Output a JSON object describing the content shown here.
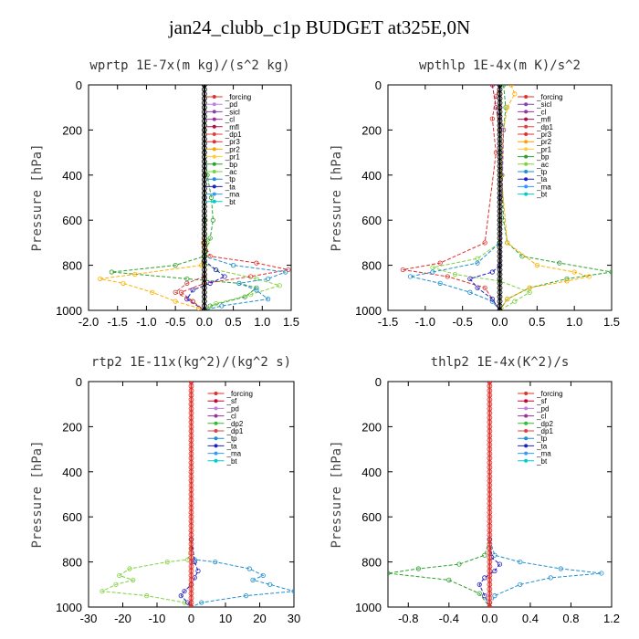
{
  "figure": {
    "title": "jan24_clubb_c1p  BUDGET at325E,0N"
  },
  "chart_data": [
    {
      "type": "line",
      "id": "wprtp",
      "title": "wprtp  1E-7x(m kg)/(s^2 kg)",
      "xlabel": "",
      "ylabel": "Pressure [hPa]",
      "xlim": [
        -2.0,
        1.5
      ],
      "xticks": [
        -2.0,
        -1.5,
        -1.0,
        -0.5,
        0.0,
        0.5,
        1.0,
        1.5
      ],
      "xtick_labels": [
        "-2.0",
        "-1.5",
        "-1.0",
        "-0.5",
        "0.0",
        "0.5",
        "1.0",
        "1.5"
      ],
      "ylim": [
        1000,
        0
      ],
      "yticks": [
        0,
        200,
        400,
        600,
        800,
        1000
      ],
      "ytick_labels": [
        "0",
        "200",
        "400",
        "600",
        "800",
        "1000"
      ],
      "legend": [
        "_forcing",
        "_pd",
        "_sicl",
        "_cl",
        "_mfl",
        "_dp1",
        "_pr3",
        "_pr2",
        "_pr1",
        "_bp",
        "_ac",
        "_tp",
        "_ta",
        "_ma",
        "_bt"
      ],
      "series": [
        {
          "name": "_bp",
          "color": "#2ca02c",
          "x": [
            0,
            0,
            0,
            0.05,
            0.12,
            0.15,
            0.1,
            0.02,
            0,
            -0.5,
            -1.6,
            -0.3,
            0.6,
            0.9,
            0.7,
            0.1,
            0
          ],
          "y": [
            0,
            200,
            300,
            400,
            500,
            600,
            680,
            740,
            760,
            800,
            830,
            860,
            880,
            900,
            940,
            980,
            1000
          ]
        },
        {
          "name": "_ac",
          "color": "#7fd23f",
          "x": [
            0,
            0,
            0,
            0.02,
            0.05,
            0.02,
            0,
            0.2,
            0.9,
            1.3,
            0.8,
            0.2,
            0
          ],
          "y": [
            0,
            300,
            500,
            600,
            700,
            760,
            790,
            820,
            860,
            890,
            930,
            970,
            1000
          ]
        },
        {
          "name": "_pr1",
          "color": "#ffb000",
          "x": [
            0,
            0,
            0,
            -0.02,
            -0.05,
            -1.2,
            -1.8,
            -1.4,
            -0.9,
            -0.5,
            -0.1,
            0
          ],
          "y": [
            0,
            400,
            600,
            700,
            800,
            840,
            860,
            880,
            920,
            960,
            990,
            1000
          ]
        },
        {
          "name": "_pr3",
          "color": "#e0302a",
          "x": [
            0,
            0,
            0,
            0.1,
            0.9,
            1.45,
            0.8,
            0,
            -0.4,
            -0.2,
            0
          ],
          "y": [
            0,
            400,
            700,
            760,
            790,
            820,
            850,
            880,
            920,
            960,
            1000
          ]
        },
        {
          "name": "_tp",
          "color": "#1f8fd0",
          "x": [
            0,
            0,
            0,
            0.5,
            1.4,
            1.1,
            0.6,
            0.9,
            1.1,
            0.3,
            0
          ],
          "y": [
            0,
            500,
            760,
            800,
            830,
            860,
            880,
            910,
            950,
            980,
            1000
          ]
        },
        {
          "name": "_ta",
          "color": "#2020c0",
          "x": [
            0,
            0,
            0,
            0.2,
            0.35,
            0.1,
            -0.2,
            -0.3,
            0
          ],
          "y": [
            0,
            600,
            780,
            820,
            850,
            880,
            910,
            950,
            1000
          ]
        },
        {
          "name": "_dp1",
          "color": "#cc4444",
          "x": [
            0,
            0,
            0,
            -0.3,
            -0.5,
            -0.2,
            0
          ],
          "y": [
            0,
            700,
            850,
            880,
            920,
            960,
            1000
          ]
        },
        {
          "name": "_forcing",
          "color": "#000000",
          "x": [
            0,
            0
          ],
          "y": [
            0,
            1000
          ]
        }
      ]
    },
    {
      "type": "line",
      "id": "wpthlp",
      "title": "wpthlp  1E-4x(m K)/s^2",
      "xlabel": "",
      "ylabel": "Pressure [hPa]",
      "xlim": [
        -1.5,
        1.5
      ],
      "xticks": [
        -1.5,
        -1.0,
        -0.5,
        0.0,
        0.5,
        1.0,
        1.5
      ],
      "xtick_labels": [
        "-1.5",
        "-1.0",
        "-0.5",
        "0.0",
        "0.5",
        "1.0",
        "1.5"
      ],
      "ylim": [
        1000,
        0
      ],
      "yticks": [
        0,
        200,
        400,
        600,
        800,
        1000
      ],
      "ytick_labels": [
        "0",
        "200",
        "400",
        "600",
        "800",
        "1000"
      ],
      "legend": [
        "_forcing",
        "_sicl",
        "_cl",
        "_mfl",
        "_dp1",
        "_pr3",
        "_pr2",
        "_pr1",
        "_bp",
        "_ac",
        "_tp",
        "_ta",
        "_ma",
        "_bt"
      ],
      "series": [
        {
          "name": "_ac",
          "color": "#2ca02c",
          "x": [
            0.05,
            0.08,
            0.05,
            0.03,
            0.05,
            0.1,
            0.3,
            0.8,
            1.5,
            0.9,
            0.4,
            0.1,
            0
          ],
          "y": [
            0,
            100,
            200,
            400,
            600,
            700,
            760,
            790,
            830,
            860,
            900,
            950,
            1000
          ]
        },
        {
          "name": "_pr1",
          "color": "#ffb000",
          "x": [
            0.15,
            0.2,
            0.1,
            0.05,
            0.02,
            0.1,
            0.5,
            1.0,
            1.2,
            0.9,
            0.4,
            0.1,
            0
          ],
          "y": [
            0,
            40,
            100,
            200,
            400,
            700,
            800,
            830,
            850,
            870,
            900,
            950,
            1000
          ]
        },
        {
          "name": "_bp",
          "color": "#7fd23f",
          "x": [
            0,
            0,
            0,
            0,
            -0.3,
            -0.9,
            -0.6,
            0,
            0.4,
            0.2,
            0
          ],
          "y": [
            0,
            200,
            600,
            700,
            770,
            810,
            840,
            870,
            920,
            960,
            1000
          ]
        },
        {
          "name": "_pr3",
          "color": "#e0302a",
          "x": [
            0,
            -0.05,
            -0.1,
            -0.05,
            -0.2,
            -0.8,
            -1.3,
            -0.7,
            -0.2,
            0
          ],
          "y": [
            0,
            50,
            150,
            300,
            700,
            790,
            820,
            850,
            900,
            1000
          ]
        },
        {
          "name": "_tp",
          "color": "#1f8fd0",
          "x": [
            0,
            0,
            0,
            -0.3,
            -0.9,
            -1.2,
            -0.8,
            -0.4,
            -0.1,
            0
          ],
          "y": [
            0,
            300,
            700,
            790,
            830,
            850,
            880,
            920,
            960,
            1000
          ]
        },
        {
          "name": "_ta",
          "color": "#2020c0",
          "x": [
            0,
            0,
            0,
            -0.1,
            -0.4,
            -0.3,
            -0.1,
            0
          ],
          "y": [
            0,
            500,
            800,
            830,
            860,
            900,
            950,
            1000
          ]
        },
        {
          "name": "_mfl",
          "color": "#aa1144",
          "x": [
            -0.1,
            -0.05,
            0,
            0
          ],
          "y": [
            0,
            100,
            200,
            1000
          ]
        },
        {
          "name": "_sicl",
          "color": "#9b59b6",
          "x": [
            0,
            0,
            0.05,
            0
          ],
          "y": [
            0,
            100,
            200,
            1000
          ]
        },
        {
          "name": "_forcing",
          "color": "#000000",
          "x": [
            0,
            0
          ],
          "y": [
            0,
            1000
          ]
        }
      ]
    },
    {
      "type": "line",
      "id": "rtp2",
      "title": "rtp2  1E-11x(kg^2)/(kg^2 s)",
      "xlabel": "",
      "ylabel": "Pressure [hPa]",
      "xlim": [
        -30,
        30
      ],
      "xticks": [
        -30,
        -20,
        -10,
        0,
        10,
        20,
        30
      ],
      "xtick_labels": [
        "-30",
        "-20",
        "-10",
        "0",
        "10",
        "20",
        "30"
      ],
      "ylim": [
        1000,
        0
      ],
      "yticks": [
        0,
        200,
        400,
        600,
        800,
        1000
      ],
      "ytick_labels": [
        "0",
        "200",
        "400",
        "600",
        "800",
        "1000"
      ],
      "legend": [
        "_forcing",
        "_sf",
        "_pd",
        "_cl",
        "_dp2",
        "_dp1",
        "_tp",
        "_ta",
        "_ma",
        "_bt"
      ],
      "series": [
        {
          "name": "_dp1",
          "color": "#7fd23f",
          "x": [
            0,
            0,
            -1,
            -7,
            -18,
            -21,
            -17,
            -22,
            -26,
            -13,
            -2,
            0
          ],
          "y": [
            0,
            700,
            790,
            800,
            830,
            860,
            880,
            900,
            930,
            950,
            980,
            1000
          ]
        },
        {
          "name": "_tp",
          "color": "#1f8fd0",
          "x": [
            0,
            0,
            1,
            7,
            17,
            21,
            18,
            23,
            30,
            16,
            3,
            0
          ],
          "y": [
            0,
            700,
            790,
            800,
            830,
            860,
            880,
            900,
            930,
            950,
            980,
            1000
          ]
        },
        {
          "name": "_ta",
          "color": "#2020c0",
          "x": [
            0,
            0,
            1,
            2,
            1,
            0,
            -2,
            -3,
            -1,
            0
          ],
          "y": [
            0,
            700,
            800,
            840,
            870,
            900,
            930,
            950,
            980,
            1000
          ]
        },
        {
          "name": "_forcing",
          "color": "#e0302a",
          "x": [
            0,
            0
          ],
          "y": [
            0,
            1000
          ]
        }
      ]
    },
    {
      "type": "line",
      "id": "thlp2",
      "title": "thlp2  1E-4x(K^2)/s",
      "xlabel": "",
      "ylabel": "Pressure [hPa]",
      "xlim": [
        -1.0,
        1.2
      ],
      "xticks": [
        -0.8,
        -0.4,
        0.0,
        0.4,
        0.8,
        1.2
      ],
      "xtick_labels": [
        "-0.8",
        "-0.4",
        "0.0",
        "0.4",
        "0.8",
        "1.2"
      ],
      "ylim": [
        1000,
        0
      ],
      "yticks": [
        0,
        200,
        400,
        600,
        800,
        1000
      ],
      "ytick_labels": [
        "0",
        "200",
        "400",
        "600",
        "800",
        "1000"
      ],
      "legend": [
        "_forcing",
        "_sf",
        "_pd",
        "_cl",
        "_dp2",
        "_dp1",
        "_tp",
        "_ta",
        "_ma",
        "_bt"
      ],
      "series": [
        {
          "name": "_dp1",
          "color": "#2ca02c",
          "x": [
            0,
            0,
            -0.05,
            -0.3,
            -0.7,
            -1.0,
            -0.4,
            -0.1,
            0
          ],
          "y": [
            0,
            700,
            770,
            810,
            830,
            850,
            880,
            940,
            1000
          ]
        },
        {
          "name": "_tp",
          "color": "#1f8fd0",
          "x": [
            0,
            0,
            0.05,
            0.3,
            0.7,
            1.1,
            0.6,
            0.3,
            0.05,
            0
          ],
          "y": [
            0,
            700,
            770,
            800,
            830,
            850,
            870,
            900,
            950,
            1000
          ]
        },
        {
          "name": "_ta",
          "color": "#2020c0",
          "x": [
            0,
            0,
            0.02,
            0.1,
            0.05,
            -0.05,
            -0.1,
            -0.05,
            0
          ],
          "y": [
            0,
            700,
            780,
            810,
            840,
            870,
            900,
            950,
            1000
          ]
        },
        {
          "name": "_forcing",
          "color": "#e0302a",
          "x": [
            0,
            0
          ],
          "y": [
            0,
            1000
          ]
        }
      ]
    }
  ]
}
